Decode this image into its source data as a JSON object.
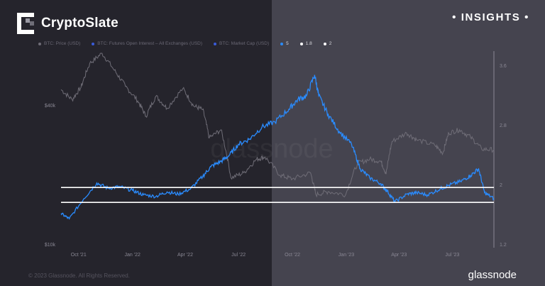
{
  "brand": {
    "name": "CryptoSlate",
    "logo_icon": "cryptoslate-logo-icon"
  },
  "badge": {
    "label": "• INSIGHTS •"
  },
  "footer": {
    "copyright": "© 2023 Glassnode. All Rights Reserved.",
    "logo_text": "glassnode"
  },
  "colors": {
    "bg_left": "#25242c",
    "bg_right": "#45444f",
    "price": "#6f6d77",
    "ratio": "#2a8cff",
    "line": "#ffffff"
  },
  "chart_data": {
    "type": "line",
    "legend": [
      {
        "label": "BTC: Price (USD)",
        "color": "#6f6d77"
      },
      {
        "label": "BTC: Futures Open Interest – All Exchanges (USD)",
        "color": "#3a5bd9"
      },
      {
        "label": "BTC: Market Cap (USD)",
        "color": "#3a5bd9"
      },
      {
        "label": "5",
        "color": "#2a8cff"
      },
      {
        "label": "1.8",
        "color": "#ffffff"
      },
      {
        "label": "2",
        "color": "#ffffff"
      }
    ],
    "x_ticks": [
      "Oct '21",
      "Jan '22",
      "Apr '22",
      "Jul '22",
      "Oct '22",
      "Jan '23",
      "Apr '23",
      "Jul '23"
    ],
    "x_tick_positions": [
      "2021-10-01",
      "2022-01-01",
      "2022-04-01",
      "2022-07-01",
      "2022-10-01",
      "2023-01-01",
      "2023-04-01",
      "2023-07-01"
    ],
    "xlim": [
      "2021-09-01",
      "2023-09-10"
    ],
    "y_left": {
      "ticks": [
        "$10k",
        "$40k"
      ],
      "tick_values": [
        10000,
        40000
      ],
      "scale": "log",
      "range": [
        10000,
        69000
      ]
    },
    "y_right": {
      "ticks": [
        "1.2",
        "2",
        "2.8",
        "3.6"
      ],
      "tick_values": [
        1.2,
        2,
        2.8,
        3.6
      ],
      "range": [
        1.2,
        3.8
      ]
    },
    "reference_lines": [
      1.97,
      1.77
    ],
    "series": [
      {
        "name": "BTC: Price (USD)",
        "axis": "left",
        "x": [
          "2021-09-01",
          "2021-09-20",
          "2021-10-05",
          "2021-10-20",
          "2021-11-10",
          "2021-12-01",
          "2021-12-20",
          "2022-01-10",
          "2022-01-24",
          "2022-02-10",
          "2022-03-01",
          "2022-03-28",
          "2022-04-15",
          "2022-05-01",
          "2022-05-12",
          "2022-06-01",
          "2022-06-18",
          "2022-07-10",
          "2022-08-01",
          "2022-08-15",
          "2022-09-10",
          "2022-10-01",
          "2022-11-01",
          "2022-11-10",
          "2022-12-01",
          "2022-12-31",
          "2023-01-20",
          "2023-02-10",
          "2023-03-01",
          "2023-03-10",
          "2023-03-20",
          "2023-04-14",
          "2023-05-01",
          "2023-06-01",
          "2023-06-15",
          "2023-06-25",
          "2023-07-13",
          "2023-08-01",
          "2023-08-20",
          "2023-09-10"
        ],
        "values": [
          47000,
          42500,
          48000,
          61000,
          67500,
          57000,
          48500,
          42000,
          36000,
          44000,
          39000,
          47500,
          40000,
          38500,
          29000,
          31500,
          19500,
          20500,
          23500,
          24000,
          20000,
          19300,
          20500,
          16500,
          17000,
          16500,
          22500,
          23500,
          23000,
          20300,
          28000,
          30500,
          28500,
          27000,
          25000,
          30500,
          31500,
          29300,
          26000,
          25800
        ]
      },
      {
        "name": "5",
        "axis": "right",
        "x": [
          "2021-09-01",
          "2021-09-15",
          "2021-10-10",
          "2021-11-01",
          "2021-11-20",
          "2021-12-10",
          "2022-01-01",
          "2022-01-20",
          "2022-02-10",
          "2022-03-01",
          "2022-03-20",
          "2022-04-10",
          "2022-05-01",
          "2022-05-15",
          "2022-06-01",
          "2022-06-15",
          "2022-07-01",
          "2022-07-20",
          "2022-08-10",
          "2022-09-01",
          "2022-09-25",
          "2022-10-10",
          "2022-10-25",
          "2022-11-08",
          "2022-11-15",
          "2022-12-01",
          "2022-12-20",
          "2023-01-10",
          "2023-01-25",
          "2023-02-10",
          "2023-03-01",
          "2023-03-12",
          "2023-03-25",
          "2023-04-15",
          "2023-05-01",
          "2023-05-20",
          "2023-06-10",
          "2023-06-25",
          "2023-07-15",
          "2023-08-01",
          "2023-08-15",
          "2023-08-25",
          "2023-09-10"
        ],
        "values": [
          1.62,
          1.55,
          1.82,
          2.03,
          1.96,
          1.98,
          1.93,
          1.87,
          1.85,
          1.91,
          1.88,
          1.95,
          2.12,
          2.25,
          2.32,
          2.4,
          2.55,
          2.62,
          2.78,
          2.85,
          3.02,
          3.15,
          3.2,
          3.48,
          3.2,
          2.95,
          2.72,
          2.55,
          2.22,
          2.1,
          2.02,
          1.92,
          1.78,
          1.88,
          1.9,
          1.87,
          1.95,
          2.0,
          2.05,
          2.13,
          2.22,
          1.9,
          1.82
        ]
      }
    ]
  }
}
